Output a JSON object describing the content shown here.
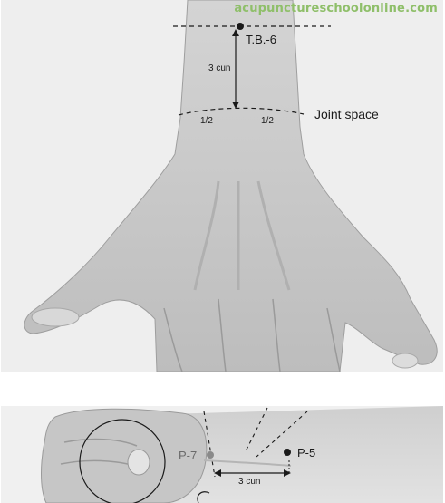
{
  "watermark": "acupunctureschoolonline.com",
  "top_figure": {
    "point_label": "T.B.-6",
    "distance_label": "3 cun",
    "joint_label": "Joint space",
    "half_left": "1/2",
    "half_right": "1/2"
  },
  "bottom_figure": {
    "point_p7": "P-7",
    "point_p5": "P-5",
    "distance_label": "3 cun"
  },
  "colors": {
    "marker": "#1a1a1a",
    "skin": "#c9c9c9",
    "background": "#eeeeee"
  }
}
